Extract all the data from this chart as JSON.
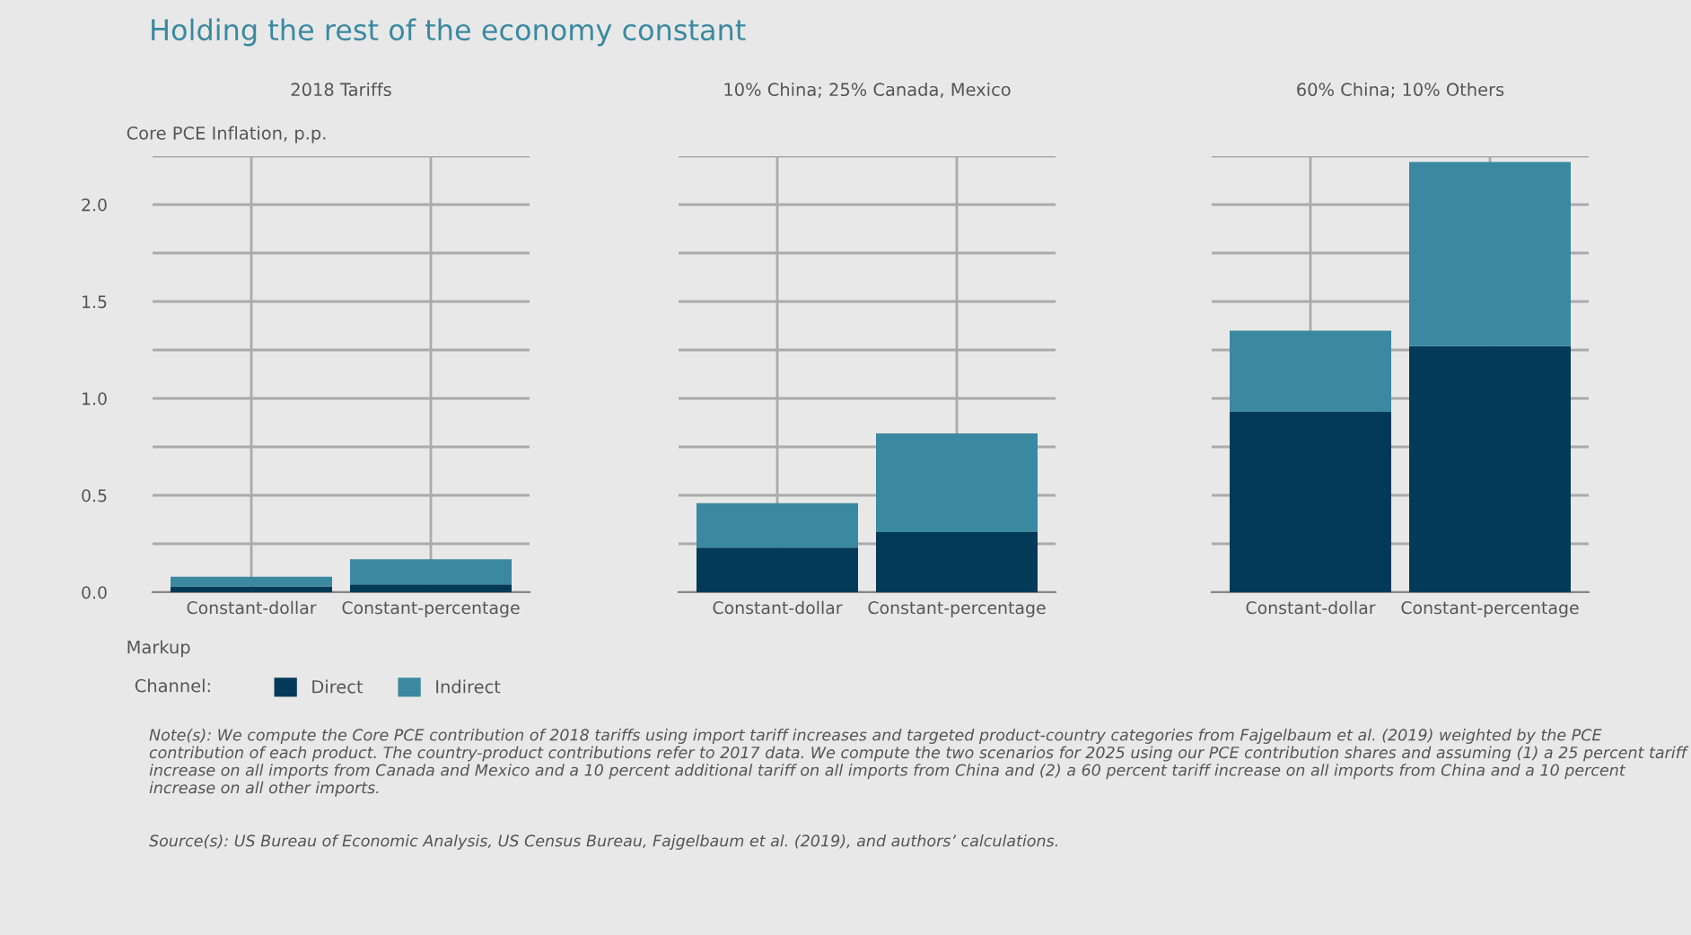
{
  "chart_data": [
    {
      "type": "bar",
      "title": "2018 Tariffs",
      "ylabel": "Core PCE Inflation, p.p.",
      "xlabel": "Markup",
      "legend_title": "Channel:",
      "stacked": true,
      "grid": true,
      "legend": "bottom",
      "categories": [
        "Constant-dollar",
        "Constant-percentage"
      ],
      "series": [
        {
          "name": "Direct",
          "color": "#033a57",
          "values": [
            0.03,
            0.04
          ]
        },
        {
          "name": "Indirect",
          "color": "#3a89a0",
          "values": [
            0.05,
            0.13
          ]
        }
      ],
      "ylim": [
        0,
        2.25
      ],
      "yticks": [
        {
          "value": 0,
          "label": "0.0"
        },
        {
          "value": 0.25,
          "label": null
        },
        0.5,
        {
          "value": 0.75,
          "label": null
        },
        {
          "value": 1,
          "label": "1.0"
        },
        {
          "value": 1.25,
          "label": null
        },
        1.5,
        {
          "value": 1.75,
          "label": null
        },
        {
          "value": 2,
          "label": "2.0"
        },
        {
          "value": 2.25,
          "label": null
        }
      ],
      "annotations": [
        "Holding the rest of the economy constant",
        "Note(s): We compute the Core PCE contribution of 2018 tariffs using import tariff increases and targeted product-country categories from Fajgelbaum et al. (2019) weighted by the PCE contribution of each product. The country-product contributions refer to 2017 data. We compute the two scenarios for 2025 using our PCE contribution shares and assuming (1) a 25 percent tariff increase on all imports from Canada and Mexico and a 10 percent additional tariff on all imports from China and (2) a 60 percent tariff increase on all imports from China and a 10 percent increase on all other imports.",
        "Source(s): US Bureau of Economic Analysis, US Census Bureau, Fajgelbaum et al. (2019), and authors’ calculations."
      ]
    },
    {
      "type": "bar",
      "title": "10% China; 25% Canada, Mexico",
      "stacked": true,
      "grid": true,
      "tick_labels": "x",
      "categories": [
        "Constant-dollar",
        "Constant-percentage"
      ],
      "series": [
        {
          "color": "#033a57",
          "values": [
            0.23,
            0.31
          ]
        },
        {
          "color": "#3a89a0",
          "values": [
            0.23,
            0.51
          ]
        }
      ],
      "ylim": [
        0,
        2.25
      ],
      "yticks": [
        0.0,
        {
          "value": 0.25,
          "label": null
        },
        0.5,
        {
          "value": 0.75,
          "label": null
        },
        1.0,
        {
          "value": 1.25,
          "label": null
        },
        1.5,
        {
          "value": 1.75,
          "label": null
        },
        2.0,
        {
          "value": 2.25,
          "label": null
        }
      ]
    },
    {
      "type": "bar",
      "title": "60% China; 10% Others",
      "stacked": true,
      "grid": true,
      "tick_labels": "x",
      "categories": [
        "Constant-dollar",
        "Constant-percentage"
      ],
      "series": [
        {
          "color": "#033a57",
          "values": [
            0.93,
            1.27
          ]
        },
        {
          "color": "#3a89a0",
          "values": [
            0.42,
            0.95
          ]
        }
      ],
      "ylim": [
        0,
        2.25
      ],
      "yticks": [
        0.0,
        {
          "value": 0.25,
          "label": null
        },
        0.5,
        {
          "value": 0.75,
          "label": null
        },
        1.0,
        {
          "value": 1.25,
          "label": null
        },
        1.5,
        {
          "value": 1.75,
          "label": null
        },
        2.0,
        {
          "value": 2.25,
          "label": null
        }
      ]
    }
  ]
}
